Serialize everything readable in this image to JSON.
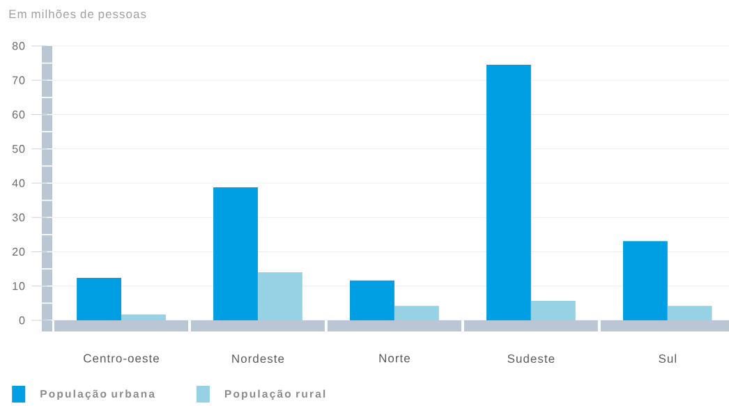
{
  "chart_data": {
    "type": "bar",
    "ylabel": "Em milhões de pessoas",
    "categories": [
      "Centro-oeste",
      "Nordeste",
      "Norte",
      "Sudeste",
      "Sul"
    ],
    "series": [
      {
        "name": "População urbana",
        "color": "#009fe3",
        "values": [
          12.4,
          38.8,
          11.6,
          74.5,
          23.1
        ]
      },
      {
        "name": "População rural",
        "color": "#96d2e4",
        "values": [
          1.7,
          14.0,
          4.2,
          5.7,
          4.2
        ]
      }
    ],
    "ylim": [
      0,
      80
    ],
    "yticks": [
      0,
      10,
      20,
      30,
      40,
      50,
      60,
      70,
      80
    ],
    "grid": "y",
    "legend": "bottom left"
  }
}
